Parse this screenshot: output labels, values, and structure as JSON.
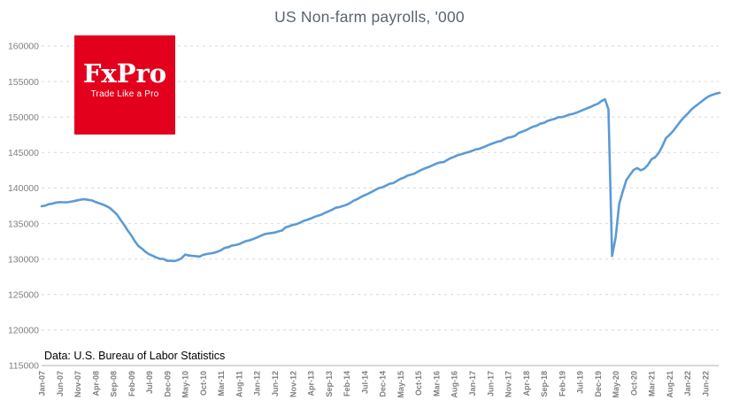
{
  "header": {
    "title": "US Non-farm payrolls, '000"
  },
  "logo": {
    "brand": "FxPro",
    "tagline": "Trade Like a Pro",
    "bg_color": "#e2001c",
    "text_color": "#ffffff"
  },
  "source_note": "Data: U.S. Bureau of Labor Statistics",
  "colors": {
    "title": "#5a6470",
    "line": "#5b9bd5",
    "gridline": "#d9d9d9",
    "axis_line": "#c0c0c0",
    "tick_label": "#7f7f7f",
    "source_text": "#000000"
  },
  "chart_data": {
    "type": "line",
    "title": "US Non-farm payrolls, '000",
    "series_name": "US Non-farm payrolls, thousands",
    "xlabel": "",
    "ylabel": "",
    "frequency": "monthly",
    "x_start": "Jan-07",
    "x_end": "Oct-22",
    "ylim": [
      115000,
      160000
    ],
    "y_ticks": [
      115000,
      120000,
      125000,
      130000,
      135000,
      140000,
      145000,
      150000,
      155000,
      160000
    ],
    "grid": "horizontal-dashed",
    "legend": "none",
    "x_tick_step_months": 5,
    "x_tick_labels": [
      "Jan-07",
      "Jun-07",
      "Nov-07",
      "Apr-08",
      "Sep-08",
      "Feb-09",
      "Jul-09",
      "Dec-09",
      "May-10",
      "Oct-10",
      "Mar-11",
      "Aug-11",
      "Jan-12",
      "Jun-12",
      "Nov-12",
      "Apr-13",
      "Sep-13",
      "Feb-14",
      "Jul-14",
      "Dec-14",
      "May-15",
      "Oct-15",
      "Mar-16",
      "Aug-16",
      "Jan-17",
      "Jun-17",
      "Nov-17",
      "Apr-18",
      "Sep-18",
      "Feb-19",
      "Jul-19",
      "Dec-19",
      "May-20",
      "Oct-20",
      "Mar-21",
      "Aug-21",
      "Jan-22",
      "Jun-22"
    ],
    "values": [
      137439,
      137529,
      137725,
      137802,
      137946,
      138013,
      138002,
      137980,
      138063,
      138158,
      138272,
      138371,
      138422,
      138338,
      138260,
      138046,
      137862,
      137691,
      137481,
      137206,
      136754,
      136283,
      135519,
      134822,
      134024,
      133323,
      132497,
      131813,
      131459,
      130992,
      130665,
      130449,
      130222,
      130024,
      130013,
      129743,
      129753,
      129703,
      129859,
      130110,
      130626,
      130504,
      130443,
      130401,
      130344,
      130585,
      130709,
      130779,
      130863,
      131031,
      131243,
      131565,
      131667,
      131895,
      131970,
      132092,
      132333,
      132536,
      132642,
      132838,
      133020,
      133246,
      133489,
      133585,
      133655,
      133739,
      133899,
      134012,
      134453,
      134625,
      134811,
      134905,
      135103,
      135372,
      135513,
      135705,
      135924,
      136105,
      136253,
      136519,
      136725,
      136950,
      137224,
      137308,
      137475,
      137643,
      137893,
      138223,
      138452,
      138731,
      138979,
      139192,
      139455,
      139728,
      139991,
      140102,
      140339,
      140605,
      140689,
      140990,
      141284,
      141474,
      141750,
      141903,
      142053,
      142355,
      142585,
      142815,
      142975,
      143212,
      143438,
      143600,
      143643,
      143930,
      144222,
      144398,
      144646,
      144766,
      144930,
      145055,
      145235,
      145445,
      145525,
      145730,
      145935,
      146150,
      146335,
      146520,
      146625,
      146890,
      147100,
      147190,
      147365,
      147770,
      147945,
      148140,
      148410,
      148640,
      148780,
      149065,
      149185,
      149460,
      149600,
      149745,
      149980,
      149985,
      150130,
      150340,
      150425,
      150605,
      150800,
      151010,
      151220,
      151415,
      151675,
      151860,
      152234,
      152504,
      151090,
      130421,
      133028,
      137809,
      139570,
      141149,
      141865,
      142545,
      142809,
      142503,
      142736,
      143272,
      144057,
      144326,
      144940,
      145902,
      147010,
      147500,
      148026,
      148703,
      149350,
      149940,
      150444,
      150998,
      151434,
      151822,
      152212,
      152610,
      152936,
      153126,
      153300,
      153400
    ]
  }
}
